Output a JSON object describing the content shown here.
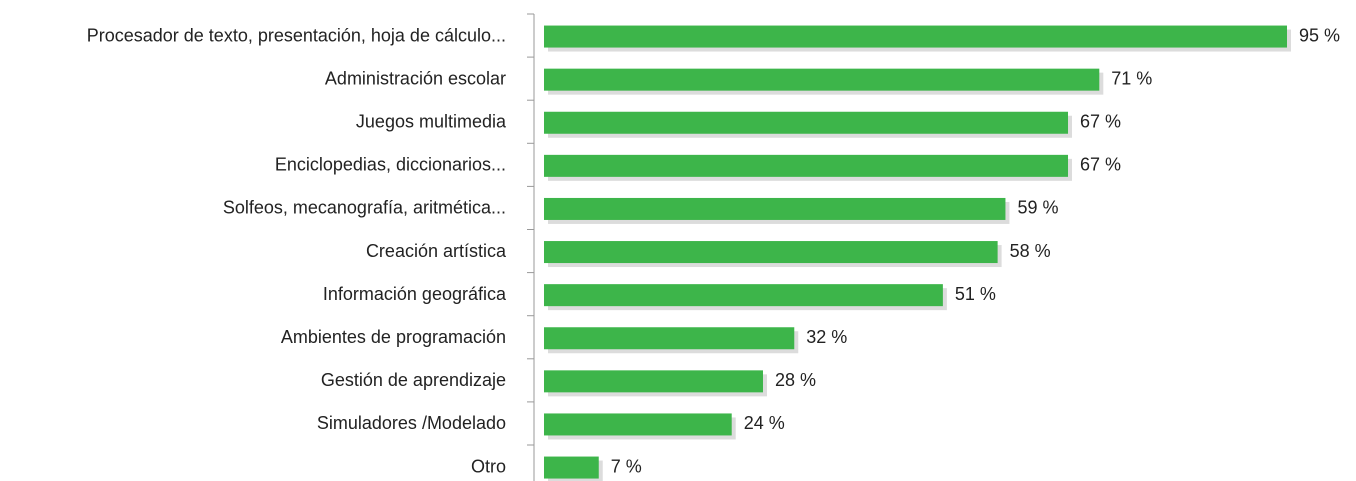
{
  "chart_data": {
    "type": "barh",
    "categories": [
      "Procesador de texto, presentación, hoja de cálculo...",
      "Administración escolar",
      "Juegos multimedia",
      "Enciclopedias, diccionarios...",
      "Solfeos, mecanografía, aritmética...",
      "Creación artística",
      "Información geográfica",
      "Ambientes de programación",
      "Gestión de aprendizaje",
      "Simuladores /Modelado",
      "Otro"
    ],
    "values": [
      95,
      71,
      67,
      67,
      59,
      58,
      51,
      32,
      28,
      24,
      7
    ],
    "value_labels": [
      "95 %",
      "71 %",
      "67 %",
      "67 %",
      "59 %",
      "58 %",
      "51 %",
      "32 %",
      "28 %",
      "24 %",
      "7 %"
    ],
    "color": "#3db54a"
  }
}
